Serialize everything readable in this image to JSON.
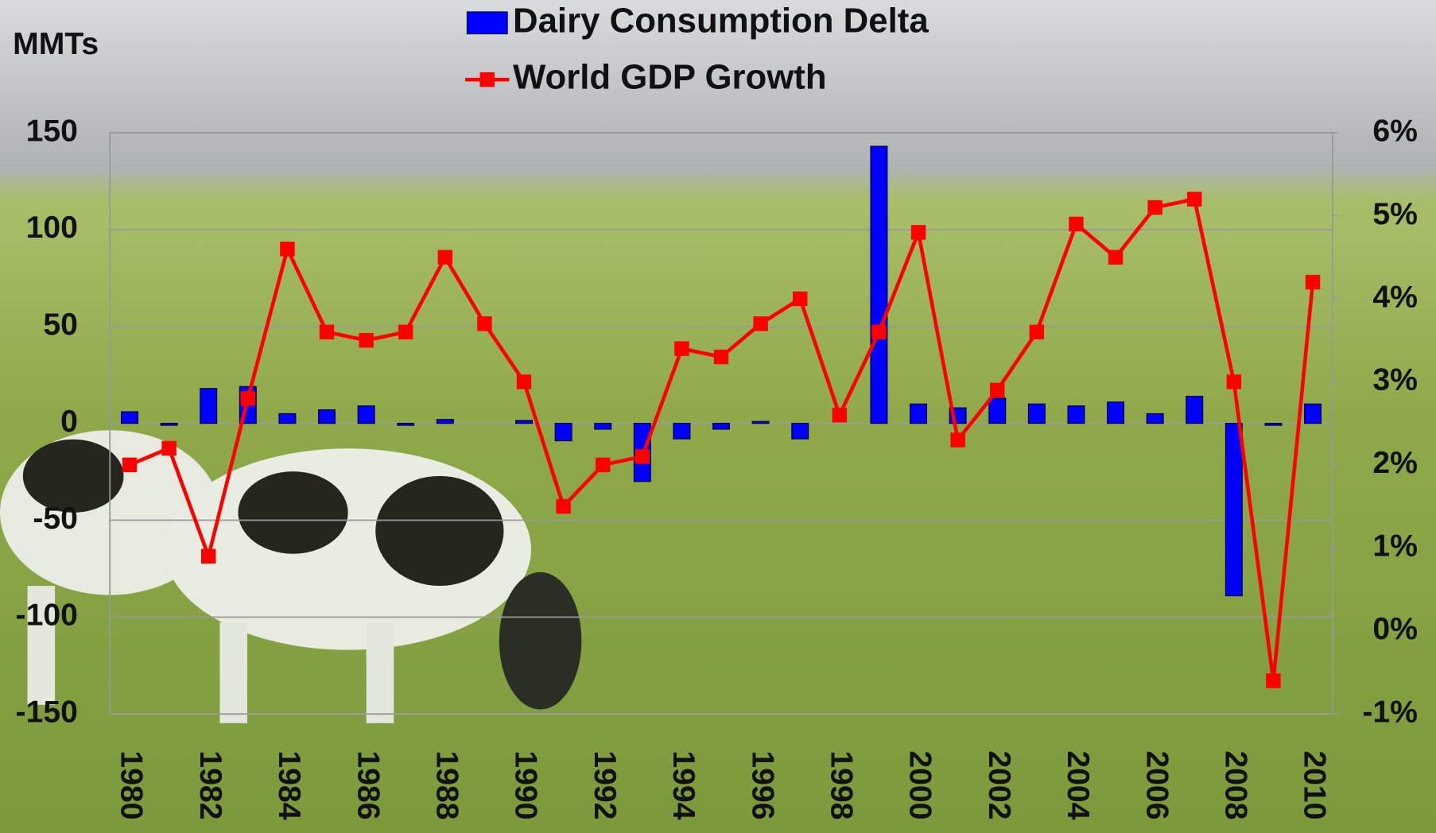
{
  "chart_data": {
    "type": "bar_line",
    "y_label": "MMTs",
    "categories": [
      "1980",
      null,
      "1982",
      null,
      "1984",
      null,
      "1986",
      null,
      "1988",
      null,
      "1990",
      null,
      "1992",
      null,
      "1994",
      null,
      "1996",
      null,
      "1998",
      null,
      "2000",
      null,
      "2002",
      null,
      "2004",
      null,
      "2006",
      null,
      "2008",
      null,
      "2010"
    ],
    "series": [
      {
        "name": "Dairy Consumption Delta",
        "type": "bar",
        "color": "#0000ff",
        "values": [
          6,
          -1,
          18,
          19,
          5,
          7,
          9,
          -1,
          2,
          0,
          1.5,
          -9,
          -3,
          -30,
          -8,
          -3,
          1,
          -8,
          0,
          143,
          10,
          8,
          13,
          10,
          9,
          11,
          5,
          14,
          -89,
          -1,
          10
        ]
      },
      {
        "name": "World GDP Growth",
        "type": "line",
        "axis": "y2",
        "color": "#ff0000",
        "values": [
          2.0,
          2.2,
          0.9,
          2.8,
          4.6,
          3.6,
          3.5,
          3.6,
          4.5,
          3.7,
          3.0,
          1.5,
          2.0,
          2.1,
          3.4,
          3.3,
          3.7,
          4.0,
          2.6,
          3.6,
          4.8,
          2.3,
          2.9,
          3.6,
          4.9,
          4.5,
          5.1,
          5.2,
          3.0,
          -0.6,
          4.2
        ]
      }
    ],
    "ylim": [
      -150,
      150
    ],
    "yticks": [
      -150,
      -100,
      -50,
      0,
      50,
      100,
      150
    ],
    "y2lim": [
      -1,
      6
    ],
    "y2ticks": [
      {
        "value": -1,
        "label": "-1%"
      },
      {
        "value": 0,
        "label": "0%"
      },
      {
        "value": 1,
        "label": "1%"
      },
      {
        "value": 2,
        "label": "2%"
      },
      {
        "value": 3,
        "label": "3%"
      },
      {
        "value": 4,
        "label": "4%"
      },
      {
        "value": 5,
        "label": "5%"
      },
      {
        "value": 6,
        "label": "6%"
      }
    ],
    "grid": true
  }
}
